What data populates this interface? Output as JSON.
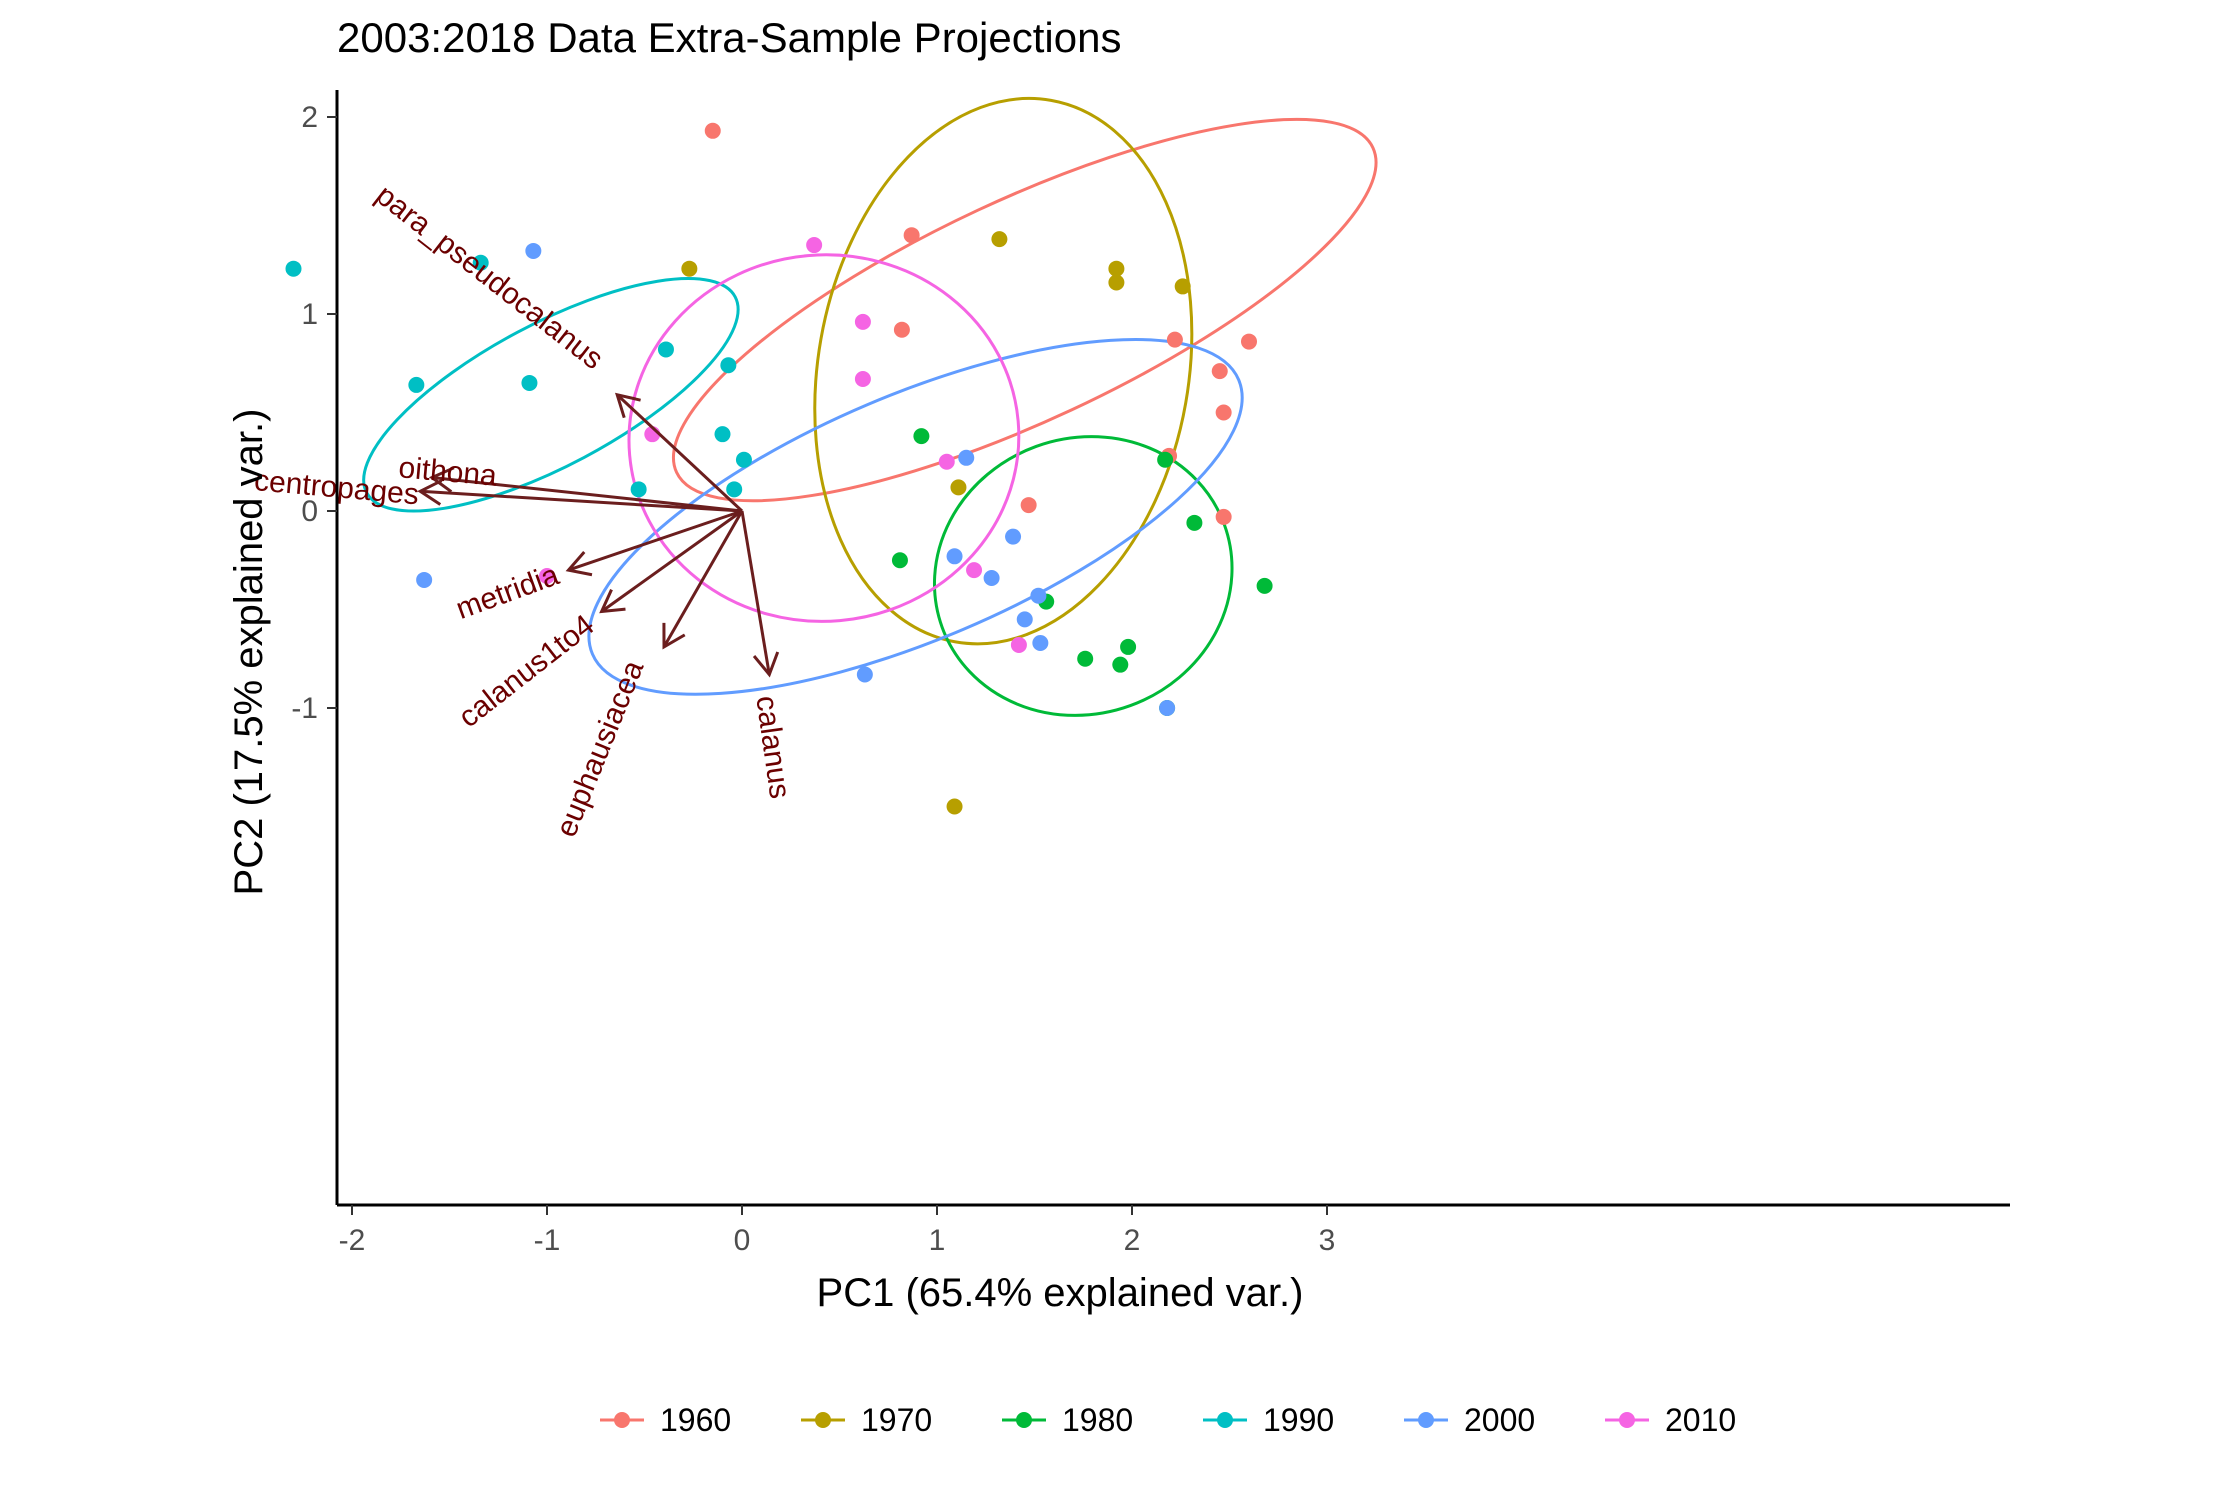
{
  "chart_data": {
    "type": "scatter",
    "title": "2003:2018 Data Extra-Sample Projections",
    "xlabel": "PC1 (65.4% explained var.)",
    "ylabel": "PC2 (17.5% explained var.)",
    "xlim": [
      -2.6,
      3.4
    ],
    "ylim": [
      -1.68,
      2.28
    ],
    "xticks": [
      -2,
      -1,
      0,
      1,
      2,
      3
    ],
    "yticks": [
      -1,
      0,
      1,
      2
    ],
    "grid": false,
    "legend_position": "bottom",
    "series": [
      {
        "name": "1960",
        "color": "#F8766D",
        "points": [
          [
            -0.15,
            1.93
          ],
          [
            0.87,
            1.4
          ],
          [
            0.82,
            0.92
          ],
          [
            2.22,
            0.87
          ],
          [
            2.6,
            0.86
          ],
          [
            2.45,
            0.71
          ],
          [
            2.47,
            0.5
          ],
          [
            2.19,
            0.28
          ],
          [
            1.47,
            0.03
          ],
          [
            2.47,
            -0.03
          ]
        ],
        "ellipse": {
          "cx": 1.45,
          "cy": 1.02,
          "rx": 1.97,
          "ry": 0.56,
          "angle_deg": -25
        }
      },
      {
        "name": "1970",
        "color": "#B79F00",
        "points": [
          [
            -0.27,
            1.23
          ],
          [
            1.32,
            1.38
          ],
          [
            1.92,
            1.23
          ],
          [
            1.92,
            1.16
          ],
          [
            2.26,
            1.14
          ],
          [
            1.11,
            0.12
          ],
          [
            1.09,
            -1.5
          ]
        ],
        "ellipse": {
          "cx": 1.34,
          "cy": 0.71,
          "rx": 1.41,
          "ry": 0.94,
          "angle_deg": 100
        }
      },
      {
        "name": "1980",
        "color": "#00BA38",
        "points": [
          [
            0.92,
            0.38
          ],
          [
            2.17,
            0.26
          ],
          [
            2.32,
            -0.06
          ],
          [
            0.81,
            -0.25
          ],
          [
            1.56,
            -0.46
          ],
          [
            2.68,
            -0.38
          ],
          [
            1.98,
            -0.69
          ],
          [
            1.76,
            -0.75
          ],
          [
            1.94,
            -0.78
          ],
          [
            2.18,
            -1.0
          ]
        ],
        "ellipse": {
          "cx": 1.75,
          "cy": -0.33,
          "rx": 0.77,
          "ry": 0.7,
          "angle_deg": -20
        }
      },
      {
        "name": "1990",
        "color": "#00BFC4",
        "points": [
          [
            -2.3,
            1.23
          ],
          [
            -1.34,
            1.26
          ],
          [
            -1.67,
            0.64
          ],
          [
            -1.09,
            0.65
          ],
          [
            -0.39,
            0.82
          ],
          [
            -0.07,
            0.74
          ],
          [
            -0.1,
            0.39
          ],
          [
            0.01,
            0.26
          ],
          [
            -0.53,
            0.11
          ],
          [
            -0.04,
            0.11
          ]
        ],
        "ellipse": {
          "cx": -0.98,
          "cy": 0.59,
          "rx": 1.07,
          "ry": 0.36,
          "angle_deg": -28
        }
      },
      {
        "name": "2000",
        "color": "#619CFF",
        "points": [
          [
            -1.07,
            1.32
          ],
          [
            1.15,
            0.27
          ],
          [
            1.39,
            -0.13
          ],
          [
            1.09,
            -0.23
          ],
          [
            1.28,
            -0.34
          ],
          [
            1.52,
            -0.43
          ],
          [
            1.45,
            -0.55
          ],
          [
            1.53,
            -0.67
          ],
          [
            -1.63,
            -0.35
          ],
          [
            0.63,
            -0.83
          ],
          [
            2.18,
            -1.0
          ]
        ],
        "ellipse": {
          "cx": 0.89,
          "cy": -0.03,
          "rx": 1.8,
          "ry": 0.62,
          "angle_deg": -23
        }
      },
      {
        "name": "2010",
        "color": "#F564E3",
        "points": [
          [
            0.37,
            1.35
          ],
          [
            0.62,
            0.96
          ],
          [
            0.62,
            0.67
          ],
          [
            -0.46,
            0.39
          ],
          [
            1.05,
            0.25
          ],
          [
            1.19,
            -0.3
          ],
          [
            1.42,
            -0.68
          ],
          [
            -1.0,
            -0.33
          ]
        ],
        "ellipse": {
          "cx": 0.42,
          "cy": 0.37,
          "rx": 1.0,
          "ry": 0.93,
          "angle_deg": -5
        }
      }
    ],
    "loadings": {
      "color": "#6B1E1E",
      "vectors": [
        {
          "name": "para_pseudocalanus",
          "x": -0.64,
          "y": 0.59
        },
        {
          "name": "oithona",
          "x": -1.59,
          "y": 0.17
        },
        {
          "name": "centropages",
          "x": -1.65,
          "y": 0.1
        },
        {
          "name": "metridia",
          "x": -0.89,
          "y": -0.3
        },
        {
          "name": "calanus1to4",
          "x": -0.72,
          "y": -0.51
        },
        {
          "name": "euphausiacea",
          "x": -0.4,
          "y": -0.69
        },
        {
          "name": "calanus",
          "x": 0.14,
          "y": -0.83
        }
      ]
    }
  },
  "legend": {
    "items": [
      {
        "label": "1960",
        "color": "#F8766D"
      },
      {
        "label": "1970",
        "color": "#B79F00"
      },
      {
        "label": "1980",
        "color": "#00BA38"
      },
      {
        "label": "1990",
        "color": "#00BFC4"
      },
      {
        "label": "2000",
        "color": "#619CFF"
      },
      {
        "label": "2010",
        "color": "#F564E3"
      }
    ]
  }
}
